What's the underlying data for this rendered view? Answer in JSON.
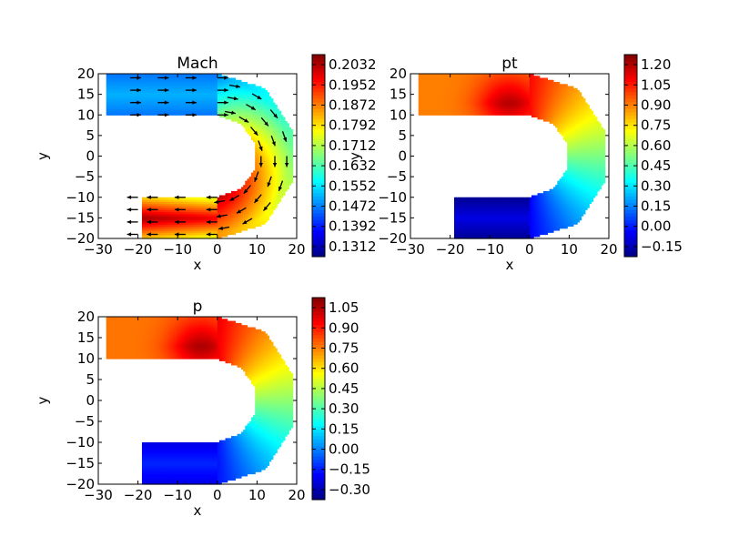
{
  "chart_data": [
    {
      "type": "heatmap",
      "title": "Mach",
      "xlabel": "x",
      "ylabel": "y",
      "xlim": [
        -30,
        20
      ],
      "ylim": [
        -20,
        20
      ],
      "xticks": [
        "−30",
        "−20",
        "−10",
        "0",
        "10",
        "20"
      ],
      "yticks": [
        "−20",
        "−15",
        "−10",
        "−5",
        "0",
        "5",
        "10",
        "15",
        "20"
      ],
      "colorbar": {
        "vmin": 0.1312,
        "vmax": 0.2072,
        "ticks": [
          "0.1312",
          "0.1392",
          "0.1472",
          "0.1552",
          "0.1632",
          "0.1712",
          "0.1792",
          "0.1872",
          "0.1952",
          "0.2032"
        ]
      },
      "colormap": "jet",
      "quiver": true
    },
    {
      "type": "heatmap",
      "title": "pt",
      "xlabel": "x",
      "ylabel": "y",
      "xlim": [
        -30,
        20
      ],
      "ylim": [
        -20,
        20
      ],
      "xticks": [
        "−30",
        "−20",
        "−10",
        "0",
        "10",
        "20"
      ],
      "yticks": [
        "−20",
        "−15",
        "−10",
        "−5",
        "0",
        "5",
        "10",
        "15",
        "20"
      ],
      "colorbar": {
        "vmin": -0.225,
        "vmax": 1.275,
        "ticks": [
          "−0.15",
          "0.00",
          "0.15",
          "0.30",
          "0.45",
          "0.60",
          "0.75",
          "0.90",
          "1.05",
          "1.20"
        ]
      },
      "colormap": "jet"
    },
    {
      "type": "heatmap",
      "title": "p",
      "xlabel": "x",
      "ylabel": "y",
      "xlim": [
        -30,
        20
      ],
      "ylim": [
        -20,
        20
      ],
      "xticks": [
        "−30",
        "−20",
        "−10",
        "0",
        "10",
        "20"
      ],
      "yticks": [
        "−20",
        "−15",
        "−10",
        "−5",
        "0",
        "5",
        "10",
        "15",
        "20"
      ],
      "colorbar": {
        "vmin": -0.375,
        "vmax": 1.125,
        "ticks": [
          "−0.30",
          "−0.15",
          "0.00",
          "0.15",
          "0.30",
          "0.45",
          "0.60",
          "0.75",
          "0.90",
          "1.05"
        ]
      },
      "colormap": "jet"
    }
  ]
}
